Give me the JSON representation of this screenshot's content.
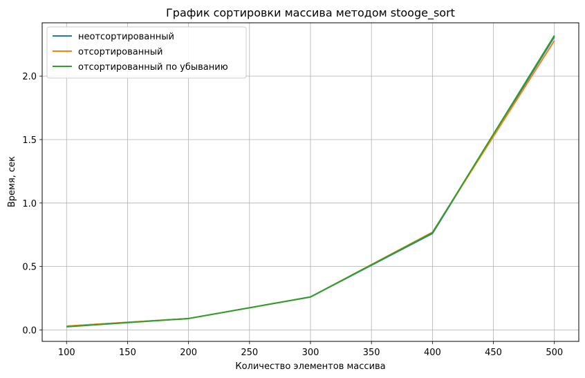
{
  "chart_data": {
    "type": "line",
    "title": "График сортировки массива методом stooge_sort",
    "xlabel": "Количество элементов массива",
    "ylabel": "Время, сек",
    "x": [
      100,
      200,
      300,
      400,
      500
    ],
    "xlim": [
      80,
      520
    ],
    "ylim": [
      -0.09,
      2.42
    ],
    "xticks": [
      100,
      150,
      200,
      250,
      300,
      350,
      400,
      450,
      500
    ],
    "yticks": [
      0.0,
      0.5,
      1.0,
      1.5,
      2.0
    ],
    "xtick_labels": [
      "100",
      "150",
      "200",
      "250",
      "300",
      "350",
      "400",
      "450",
      "500"
    ],
    "ytick_labels": [
      "0.0",
      "0.5",
      "1.0",
      "1.5",
      "2.0"
    ],
    "grid": true,
    "legend_position": "top-left",
    "series": [
      {
        "name": "неотсортированный",
        "color": "#1f77b4",
        "values": [
          0.03,
          0.09,
          0.26,
          0.76,
          2.31
        ]
      },
      {
        "name": "отсортированный",
        "color": "#ff7f0e",
        "values": [
          0.03,
          0.09,
          0.26,
          0.77,
          2.28
        ]
      },
      {
        "name": "отсортированный по убыванию",
        "color": "#2ca02c",
        "values": [
          0.025,
          0.09,
          0.26,
          0.765,
          2.32
        ]
      }
    ]
  }
}
